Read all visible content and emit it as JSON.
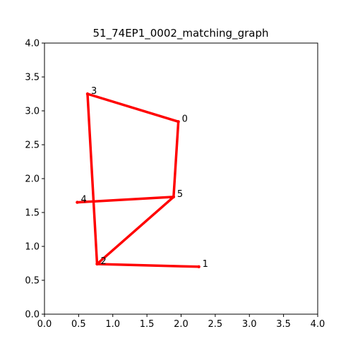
{
  "chart_data": {
    "type": "line",
    "title": "51_74EP1_0002_matching_graph",
    "xlabel": "",
    "ylabel": "",
    "xlim": [
      0.0,
      4.0
    ],
    "ylim": [
      0.0,
      4.0
    ],
    "xticks": [
      "0.0",
      "0.5",
      "1.0",
      "1.5",
      "2.0",
      "2.5",
      "3.0",
      "3.5",
      "4.0"
    ],
    "yticks": [
      "0.0",
      "0.5",
      "1.0",
      "1.5",
      "2.0",
      "2.5",
      "3.0",
      "3.5",
      "4.0"
    ],
    "grid": false,
    "nodes": [
      {
        "id": "0",
        "x": 1.96,
        "y": 2.84
      },
      {
        "id": "1",
        "x": 2.26,
        "y": 0.7
      },
      {
        "id": "2",
        "x": 0.77,
        "y": 0.74
      },
      {
        "id": "3",
        "x": 0.63,
        "y": 3.25
      },
      {
        "id": "4",
        "x": 0.48,
        "y": 1.65
      },
      {
        "id": "5",
        "x": 1.89,
        "y": 1.73
      }
    ],
    "edges": [
      [
        "3",
        "0"
      ],
      [
        "0",
        "5"
      ],
      [
        "5",
        "4"
      ],
      [
        "5",
        "2"
      ],
      [
        "3",
        "2"
      ],
      [
        "2",
        "1"
      ]
    ],
    "edge_color": "#ff0000"
  }
}
